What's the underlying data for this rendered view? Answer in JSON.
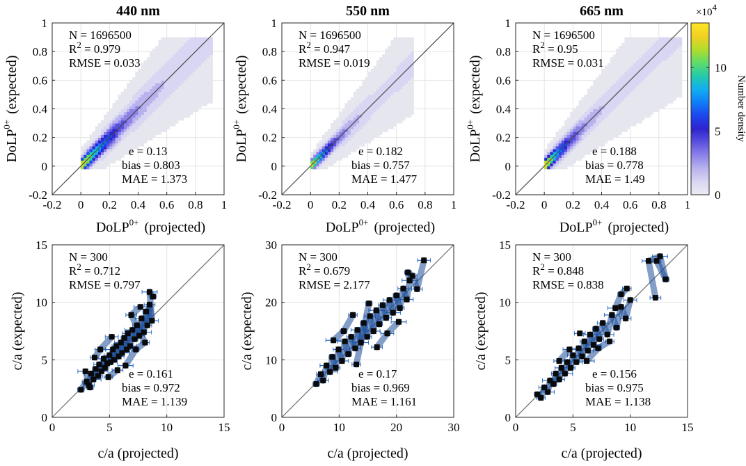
{
  "figure": {
    "colorbar": {
      "label": "Number density",
      "multiplier_base": "×10",
      "multiplier_exp": "4",
      "ticks": [
        0,
        5,
        10
      ],
      "max": 13.5,
      "colors": [
        "#ececf5",
        "#d8d6f2",
        "#b8b2ee",
        "#8c82e8",
        "#5a50de",
        "#2e24d0",
        "#1c46ee",
        "#0f7ef8",
        "#12aef0",
        "#25cba9",
        "#5fdc68",
        "#b2dd2c",
        "#f2d021",
        "#fde725"
      ]
    }
  },
  "chart_data": [
    {
      "type": "heatmap",
      "title": "440 nm",
      "xlabel": "DoLP",
      "xlabel_sup": "0+",
      "xlabel_suffix": "(projected)",
      "ylabel": "DoLP",
      "ylabel_sup": "0+",
      "ylabel_suffix": "(expected)",
      "xlim": [
        -0.2,
        1
      ],
      "ylim": [
        -0.2,
        1
      ],
      "xticks": [
        -0.2,
        0,
        0.2,
        0.4,
        0.6,
        0.8,
        1
      ],
      "yticks": [
        -0.2,
        0,
        0.2,
        0.4,
        0.6,
        0.8,
        1
      ],
      "xtick_labels": [
        "-0.2",
        "0",
        "0.2",
        "0.4",
        "0.6",
        "0.8",
        "1"
      ],
      "ytick_labels": [
        "-0.2",
        "0",
        "0.2",
        "0.4",
        "0.6",
        "0.8",
        "1"
      ],
      "stats_top": {
        "N": "N = 1696500",
        "R2_prefix": "R",
        "R2_sup": "2",
        "R2_value": " = 0.979",
        "RMSE": "RMSE = 0.033"
      },
      "stats_bottom": {
        "e": "e = 0.13",
        "bias": "bias = 0.803",
        "MAE": "MAE = 1.373"
      },
      "density": {
        "xmax": 0.93,
        "spread": 0.055,
        "peak": 0.2
      },
      "one_to_one": true
    },
    {
      "type": "heatmap",
      "title": "550 nm",
      "xlabel": "DoLP",
      "xlabel_sup": "0+",
      "xlabel_suffix": "(projected)",
      "ylabel": "DoLP",
      "ylabel_sup": "0+",
      "ylabel_suffix": "(expected)",
      "xlim": [
        -0.2,
        1
      ],
      "ylim": [
        -0.2,
        1
      ],
      "xticks": [
        -0.2,
        0,
        0.2,
        0.4,
        0.6,
        0.8,
        1
      ],
      "yticks": [
        -0.2,
        0,
        0.2,
        0.4,
        0.6,
        0.8,
        1
      ],
      "xtick_labels": [
        "-0.2",
        "0",
        "0.2",
        "0.4",
        "0.6",
        "0.8",
        "1"
      ],
      "ytick_labels": [
        "-0.2",
        "0",
        "0.2",
        "0.4",
        "0.6",
        "0.8",
        "1"
      ],
      "stats_top": {
        "N": "N = 1696500",
        "R2_prefix": "R",
        "R2_sup": "2",
        "R2_value": " = 0.947",
        "RMSE": "RMSE = 0.019"
      },
      "stats_bottom": {
        "e": "e = 0.182",
        "bias": "bias = 0.757",
        "MAE": "MAE = 1.477"
      },
      "density": {
        "xmax": 0.72,
        "spread": 0.04,
        "peak": 0.12
      },
      "one_to_one": true
    },
    {
      "type": "heatmap",
      "title": "665 nm",
      "xlabel": "DoLP",
      "xlabel_sup": "0+",
      "xlabel_suffix": "(projected)",
      "ylabel": "DoLP",
      "ylabel_sup": "0+",
      "ylabel_suffix": "(expected)",
      "xlim": [
        -0.2,
        1
      ],
      "ylim": [
        -0.2,
        1
      ],
      "xticks": [
        -0.2,
        0,
        0.2,
        0.4,
        0.6,
        0.8,
        1
      ],
      "yticks": [
        -0.2,
        0,
        0.2,
        0.4,
        0.6,
        0.8,
        1
      ],
      "xtick_labels": [
        "-0.2",
        "0",
        "0.2",
        "0.4",
        "0.6",
        "0.8",
        "1"
      ],
      "ytick_labels": [
        "-0.2",
        "0",
        "0.2",
        "0.4",
        "0.6",
        "0.8",
        "1"
      ],
      "stats_top": {
        "N": "N = 1696500",
        "R2_prefix": "R",
        "R2_sup": "2",
        "R2_value": " = 0.95",
        "RMSE": "RMSE = 0.031"
      },
      "stats_bottom": {
        "e": "e = 0.188",
        "bias": "bias = 0.778",
        "MAE": "MAE = 1.49"
      },
      "density": {
        "xmax": 0.97,
        "spread": 0.05,
        "peak": 0.14
      },
      "one_to_one": true
    },
    {
      "type": "scatter",
      "title": "",
      "xlabel": "c/a (projected)",
      "ylabel": "c/a (expected)",
      "xlim": [
        0,
        15
      ],
      "ylim": [
        0,
        15
      ],
      "xticks": [
        0,
        5,
        10,
        15
      ],
      "yticks": [
        0,
        5,
        10,
        15
      ],
      "xtick_labels": [
        "0",
        "5",
        "10",
        "15"
      ],
      "ytick_labels": [
        "0",
        "5",
        "10",
        "15"
      ],
      "stats_top": {
        "N": "N = 300",
        "R2_prefix": "R",
        "R2_sup": "2",
        "R2_value": " = 0.712",
        "RMSE": "RMSE = 0.797"
      },
      "stats_bottom": {
        "e": "e = 0.161",
        "bias": "bias = 0.972",
        "MAE": "MAE = 1.139"
      },
      "points": [
        [
          2.5,
          2.4
        ],
        [
          3.0,
          3.1
        ],
        [
          3.2,
          2.8
        ],
        [
          3.4,
          3.8
        ],
        [
          3.6,
          3.3
        ],
        [
          3.8,
          4.2
        ],
        [
          4.0,
          3.6
        ],
        [
          4.1,
          4.6
        ],
        [
          4.3,
          4.0
        ],
        [
          4.5,
          5.1
        ],
        [
          4.6,
          4.3
        ],
        [
          4.8,
          4.7
        ],
        [
          5.0,
          5.4
        ],
        [
          5.1,
          4.8
        ],
        [
          5.3,
          5.9
        ],
        [
          5.4,
          5.0
        ],
        [
          5.6,
          6.2
        ],
        [
          5.8,
          5.3
        ],
        [
          6.0,
          6.5
        ],
        [
          6.1,
          5.6
        ],
        [
          6.3,
          6.9
        ],
        [
          6.5,
          5.9
        ],
        [
          6.6,
          7.3
        ],
        [
          6.8,
          6.2
        ],
        [
          7.0,
          7.6
        ],
        [
          7.2,
          6.8
        ],
        [
          7.4,
          8.0
        ],
        [
          7.6,
          7.1
        ],
        [
          7.8,
          8.6
        ],
        [
          8.0,
          7.4
        ],
        [
          8.2,
          9.2
        ],
        [
          8.3,
          8.0
        ],
        [
          8.5,
          9.8
        ],
        [
          8.7,
          8.4
        ],
        [
          8.5,
          10.9
        ],
        [
          8.8,
          10.5
        ],
        [
          3.7,
          5.2
        ],
        [
          4.2,
          5.9
        ],
        [
          5.2,
          7.0
        ],
        [
          6.4,
          4.5
        ],
        [
          7.3,
          5.9
        ],
        [
          8.1,
          6.5
        ],
        [
          6.9,
          8.9
        ],
        [
          7.7,
          9.6
        ],
        [
          2.9,
          4.0
        ],
        [
          3.3,
          2.6
        ],
        [
          4.9,
          3.5
        ],
        [
          5.7,
          4.1
        ]
      ],
      "one_to_one": true
    },
    {
      "type": "scatter",
      "title": "",
      "xlabel": "c/a (projected)",
      "ylabel": "c/a (expected)",
      "xlim": [
        0,
        30
      ],
      "ylim": [
        0,
        30
      ],
      "xticks": [
        0,
        10,
        20,
        30
      ],
      "yticks": [
        0,
        10,
        20,
        30
      ],
      "xtick_labels": [
        "0",
        "10",
        "20",
        "30"
      ],
      "ytick_labels": [
        "0",
        "10",
        "20",
        "30"
      ],
      "stats_top": {
        "N": "N = 300",
        "R2_prefix": "R",
        "R2_sup": "2",
        "R2_value": " = 0.679",
        "RMSE": "RMSE = 2.177"
      },
      "stats_bottom": {
        "e": "e = 0.17",
        "bias": "bias = 0.969",
        "MAE": "MAE = 1.161"
      },
      "points": [
        [
          6.0,
          5.8
        ],
        [
          6.8,
          7.5
        ],
        [
          7.2,
          6.4
        ],
        [
          7.8,
          9.0
        ],
        [
          8.4,
          7.9
        ],
        [
          8.8,
          10.5
        ],
        [
          9.4,
          8.6
        ],
        [
          9.9,
          11.8
        ],
        [
          10.5,
          9.8
        ],
        [
          11.0,
          13.2
        ],
        [
          11.6,
          11.0
        ],
        [
          12.1,
          14.0
        ],
        [
          12.8,
          12.0
        ],
        [
          13.2,
          15.2
        ],
        [
          13.8,
          13.0
        ],
        [
          14.3,
          16.4
        ],
        [
          14.9,
          14.0
        ],
        [
          15.4,
          17.6
        ],
        [
          16.0,
          15.0
        ],
        [
          16.5,
          18.6
        ],
        [
          17.0,
          16.2
        ],
        [
          17.6,
          19.5
        ],
        [
          18.2,
          17.3
        ],
        [
          18.8,
          20.4
        ],
        [
          19.4,
          18.2
        ],
        [
          20.0,
          21.2
        ],
        [
          20.6,
          19.0
        ],
        [
          21.2,
          22.4
        ],
        [
          21.8,
          20.5
        ],
        [
          22.3,
          23.8
        ],
        [
          22.0,
          25.2
        ],
        [
          22.8,
          24.6
        ],
        [
          23.6,
          22.3
        ],
        [
          24.8,
          27.3
        ],
        [
          9.0,
          13.4
        ],
        [
          10.8,
          15.0
        ],
        [
          12.4,
          17.8
        ],
        [
          16.6,
          12.2
        ],
        [
          18.4,
          14.6
        ],
        [
          20.4,
          16.6
        ],
        [
          15.2,
          19.8
        ],
        [
          13.0,
          9.2
        ]
      ],
      "one_to_one": true
    },
    {
      "type": "scatter",
      "title": "",
      "xlabel": "c/a (projected)",
      "ylabel": "c/a (expected)",
      "xlim": [
        0,
        15
      ],
      "ylim": [
        0,
        15
      ],
      "xticks": [
        0,
        5,
        10,
        15
      ],
      "yticks": [
        0,
        5,
        10,
        15
      ],
      "xtick_labels": [
        "0",
        "5",
        "10",
        "15"
      ],
      "ytick_labels": [
        "0",
        "5",
        "10",
        "15"
      ],
      "stats_top": {
        "N": "N = 300",
        "R2_prefix": "R",
        "R2_sup": "2",
        "R2_value": " = 0.848",
        "RMSE": "RMSE = 0.838"
      },
      "stats_bottom": {
        "e": "e = 0.156",
        "bias": "bias = 0.975",
        "MAE": "MAE = 1.138"
      },
      "points": [
        [
          1.9,
          2.0
        ],
        [
          2.2,
          1.7
        ],
        [
          2.5,
          2.6
        ],
        [
          2.8,
          2.2
        ],
        [
          3.0,
          3.2
        ],
        [
          3.3,
          2.9
        ],
        [
          3.5,
          3.8
        ],
        [
          3.8,
          3.3
        ],
        [
          4.0,
          4.3
        ],
        [
          4.3,
          3.8
        ],
        [
          4.5,
          4.8
        ],
        [
          4.8,
          4.3
        ],
        [
          5.0,
          5.4
        ],
        [
          5.3,
          4.8
        ],
        [
          5.5,
          6.0
        ],
        [
          5.8,
          5.3
        ],
        [
          6.0,
          6.6
        ],
        [
          6.3,
          5.8
        ],
        [
          6.5,
          7.2
        ],
        [
          6.8,
          6.3
        ],
        [
          7.0,
          7.7
        ],
        [
          7.3,
          6.8
        ],
        [
          7.6,
          8.2
        ],
        [
          8.0,
          7.2
        ],
        [
          8.4,
          8.9
        ],
        [
          8.8,
          7.8
        ],
        [
          9.2,
          9.6
        ],
        [
          9.6,
          8.6
        ],
        [
          10.0,
          10.2
        ],
        [
          8.7,
          9.5
        ],
        [
          9.2,
          10.7
        ],
        [
          9.7,
          11.2
        ],
        [
          12.2,
          10.4
        ],
        [
          11.6,
          13.6
        ],
        [
          12.6,
          14.0
        ],
        [
          13.1,
          12.0
        ],
        [
          12.3,
          13.6
        ],
        [
          3.8,
          4.9
        ],
        [
          4.7,
          5.9
        ],
        [
          6.2,
          4.9
        ],
        [
          7.2,
          6.0
        ],
        [
          8.2,
          6.6
        ],
        [
          5.6,
          7.3
        ]
      ],
      "one_to_one": true
    }
  ]
}
